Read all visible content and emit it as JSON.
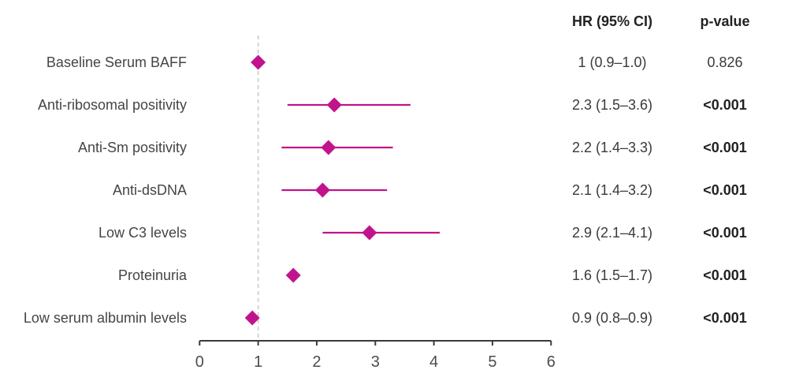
{
  "chart_data": {
    "type": "forest",
    "title": "",
    "xlabel": "",
    "legend": "none",
    "x_range": [
      0,
      6
    ],
    "x_ticks": [
      0,
      1,
      2,
      3,
      4,
      5,
      6
    ],
    "ref_line": 1,
    "columns": {
      "hr_header": "HR (95% CI)",
      "p_header": "p-value"
    },
    "rows": [
      {
        "label": "Baseline Serum BAFF",
        "hr": 1.0,
        "lo": 0.9,
        "hi": 1.0,
        "hr_ci": "1 (0.9–1.0)",
        "p": "0.826",
        "p_bold": false
      },
      {
        "label": "Anti-ribosomal positivity",
        "hr": 2.3,
        "lo": 1.5,
        "hi": 3.6,
        "hr_ci": "2.3 (1.5–3.6)",
        "p": "<0.001",
        "p_bold": true
      },
      {
        "label": "Anti-Sm positivity",
        "hr": 2.2,
        "lo": 1.4,
        "hi": 3.3,
        "hr_ci": "2.2 (1.4–3.3)",
        "p": "<0.001",
        "p_bold": true
      },
      {
        "label": "Anti-dsDNA",
        "hr": 2.1,
        "lo": 1.4,
        "hi": 3.2,
        "hr_ci": "2.1 (1.4–3.2)",
        "p": "<0.001",
        "p_bold": true
      },
      {
        "label": "Low C3 levels",
        "hr": 2.9,
        "lo": 2.1,
        "hi": 4.1,
        "hr_ci": "2.9 (2.1–4.1)",
        "p": "<0.001",
        "p_bold": true
      },
      {
        "label": "Proteinuria",
        "hr": 1.6,
        "lo": 1.5,
        "hi": 1.7,
        "hr_ci": "1.6 (1.5–1.7)",
        "p": "<0.001",
        "p_bold": true
      },
      {
        "label": "Low serum albumin levels",
        "hr": 0.9,
        "lo": 0.8,
        "hi": 0.9,
        "hr_ci": "0.9 (0.8–0.9)",
        "p": "<0.001",
        "p_bold": true
      }
    ],
    "colors": {
      "marker": "#C1148C",
      "ci_line": "#C1148C",
      "ref_line": "#CBCBCB",
      "axis": "#3A3A3A",
      "tick_label": "#4D4D4D"
    }
  }
}
